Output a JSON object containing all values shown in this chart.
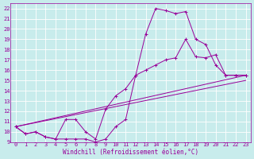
{
  "xlabel": "Windchill (Refroidissement éolien,°C)",
  "bg_color": "#c8ecec",
  "grid_color": "#ffffff",
  "line_color": "#990099",
  "xlim": [
    -0.5,
    23.5
  ],
  "ylim": [
    9,
    22.5
  ],
  "xticks": [
    0,
    1,
    2,
    3,
    4,
    5,
    6,
    7,
    8,
    9,
    10,
    11,
    12,
    13,
    14,
    15,
    16,
    17,
    18,
    19,
    20,
    21,
    22,
    23
  ],
  "yticks": [
    9,
    10,
    11,
    12,
    13,
    14,
    15,
    16,
    17,
    18,
    19,
    20,
    21,
    22
  ],
  "line1_x": [
    0,
    1,
    2,
    3,
    4,
    5,
    6,
    7,
    8,
    9,
    10,
    11,
    12,
    13,
    14,
    15,
    16,
    17,
    18,
    19,
    20,
    21,
    22,
    23
  ],
  "line1_y": [
    10.5,
    9.8,
    10.0,
    9.5,
    9.3,
    9.3,
    9.3,
    9.3,
    9.0,
    9.3,
    10.5,
    11.2,
    15.5,
    19.5,
    22.0,
    21.8,
    21.5,
    21.7,
    19.0,
    18.5,
    16.5,
    15.5,
    15.5,
    15.5
  ],
  "line2_x": [
    0,
    1,
    2,
    3,
    4,
    5,
    6,
    7,
    8,
    9,
    10,
    11,
    12,
    13,
    14,
    15,
    16,
    17,
    18,
    19,
    20,
    21,
    22,
    23
  ],
  "line2_y": [
    10.5,
    9.8,
    10.0,
    9.5,
    9.3,
    11.2,
    11.2,
    10.0,
    9.3,
    12.2,
    13.5,
    14.2,
    15.5,
    16.0,
    16.5,
    17.0,
    17.2,
    19.0,
    17.3,
    17.2,
    17.5,
    15.5,
    15.5,
    15.5
  ],
  "line3_x": [
    0,
    23
  ],
  "line3_y": [
    10.5,
    15.0
  ],
  "line4_x": [
    0,
    23
  ],
  "line4_y": [
    10.5,
    15.5
  ],
  "xlabel_fontsize": 5.5,
  "tick_fontsize": 5.0,
  "linewidth": 0.7,
  "markersize": 2.5
}
